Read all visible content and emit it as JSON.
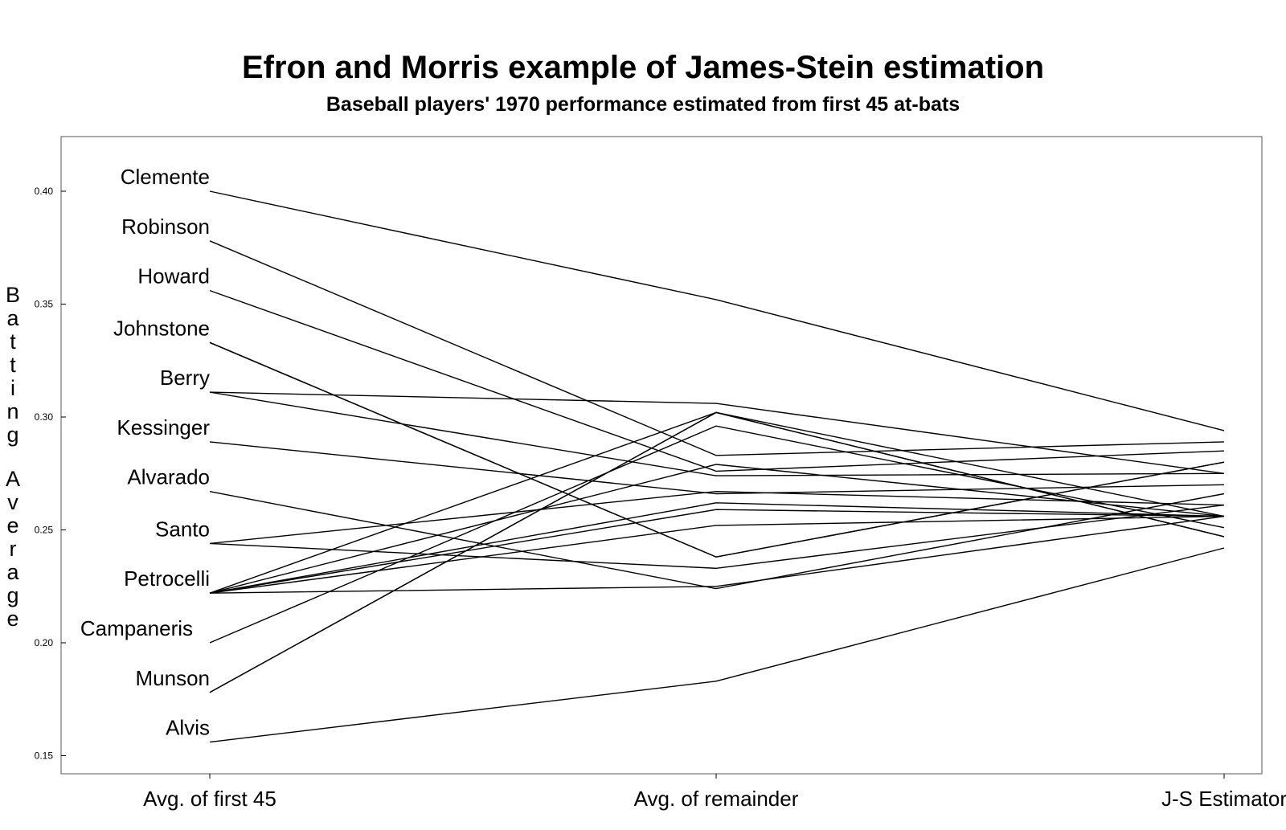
{
  "title": "Efron and Morris example of James-Stein estimation",
  "subtitle": "Baseball players' 1970 performance estimated from first 45 at-bats",
  "chart_data": {
    "type": "line",
    "title": "Efron and Morris example of James-Stein estimation",
    "subtitle": "Baseball players' 1970 performance estimated from first 45 at-bats",
    "xlabel": "",
    "ylabel": "Batting Average",
    "categories": [
      "Avg. of first 45",
      "Avg. of remainder",
      "J-S Estimator"
    ],
    "ylim": [
      0.145,
      0.425
    ],
    "yticks": [
      "0.15",
      "0.20",
      "0.25",
      "0.30",
      "0.35",
      "0.40"
    ],
    "grid": false,
    "legend": "none",
    "row_labels": [
      {
        "text": "Clemente",
        "value": 0.4
      },
      {
        "text": "Robinson",
        "value": 0.378
      },
      {
        "text": "Howard",
        "value": 0.356
      },
      {
        "text": "Johnstone",
        "value": 0.333
      },
      {
        "text": "Berry",
        "value": 0.311
      },
      {
        "text": "Kessinger",
        "value": 0.289
      },
      {
        "text": "Alvarado",
        "value": 0.267
      },
      {
        "text": "Santo",
        "value": 0.244
      },
      {
        "text": "Petrocelli",
        "value": 0.222
      },
      {
        "text": "Campaneris",
        "value": 0.2
      },
      {
        "text": "Munson",
        "value": 0.178
      },
      {
        "text": "Alvis",
        "value": 0.156
      }
    ],
    "series": [
      {
        "values": [
          0.4,
          0.352,
          0.294
        ]
      },
      {
        "values": [
          0.378,
          0.283,
          0.289
        ]
      },
      {
        "values": [
          0.356,
          0.276,
          0.285
        ]
      },
      {
        "values": [
          0.333,
          0.238,
          0.28
        ]
      },
      {
        "values": [
          0.333,
          0.238,
          0.28
        ]
      },
      {
        "values": [
          0.311,
          0.306,
          0.275
        ]
      },
      {
        "values": [
          0.311,
          0.274,
          0.275
        ]
      },
      {
        "values": [
          0.289,
          0.266,
          0.27
        ]
      },
      {
        "values": [
          0.267,
          0.224,
          0.266
        ]
      },
      {
        "values": [
          0.244,
          0.267,
          0.261
        ]
      },
      {
        "values": [
          0.244,
          0.233,
          0.261
        ]
      },
      {
        "values": [
          0.222,
          0.302,
          0.256
        ]
      },
      {
        "values": [
          0.222,
          0.279,
          0.256
        ]
      },
      {
        "values": [
          0.222,
          0.262,
          0.256
        ]
      },
      {
        "values": [
          0.222,
          0.259,
          0.256
        ]
      },
      {
        "values": [
          0.222,
          0.252,
          0.256
        ]
      },
      {
        "values": [
          0.222,
          0.225,
          0.256
        ]
      },
      {
        "values": [
          0.2,
          0.296,
          0.251
        ]
      },
      {
        "values": [
          0.178,
          0.302,
          0.247
        ]
      },
      {
        "values": [
          0.178,
          0.302,
          0.247
        ]
      },
      {
        "values": [
          0.156,
          0.183,
          0.242
        ]
      }
    ]
  }
}
